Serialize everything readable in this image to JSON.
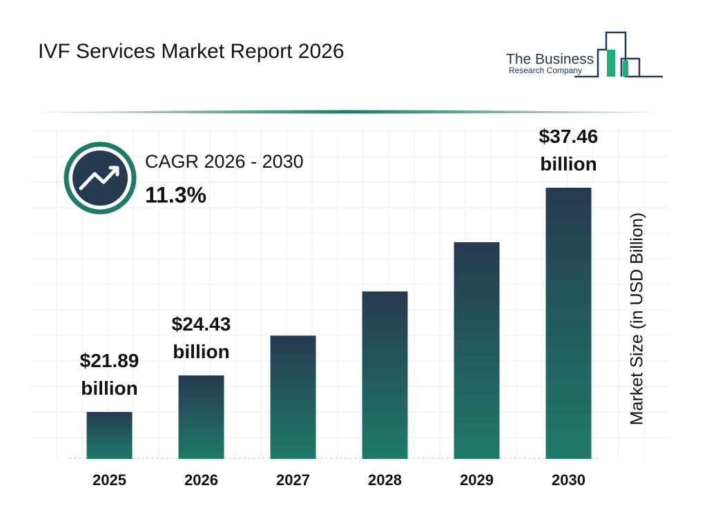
{
  "chart_data": {
    "type": "bar",
    "title": "IVF Services Market Report 2026",
    "cagr_label": "CAGR 2026 - 2030",
    "cagr_value": "11.3%",
    "y_label": "Market Size (in USD Billion)",
    "categories": [
      "2025",
      "2026",
      "2027",
      "2028",
      "2029",
      "2030"
    ],
    "values": [
      21.89,
      24.43,
      27.19,
      30.26,
      33.68,
      37.46
    ],
    "value_labels": [
      "$21.89 billion",
      "$24.43 billion",
      null,
      null,
      null,
      "$37.46 billion"
    ]
  },
  "logo": {
    "name": "The Business",
    "subtitle": "Research Company"
  }
}
